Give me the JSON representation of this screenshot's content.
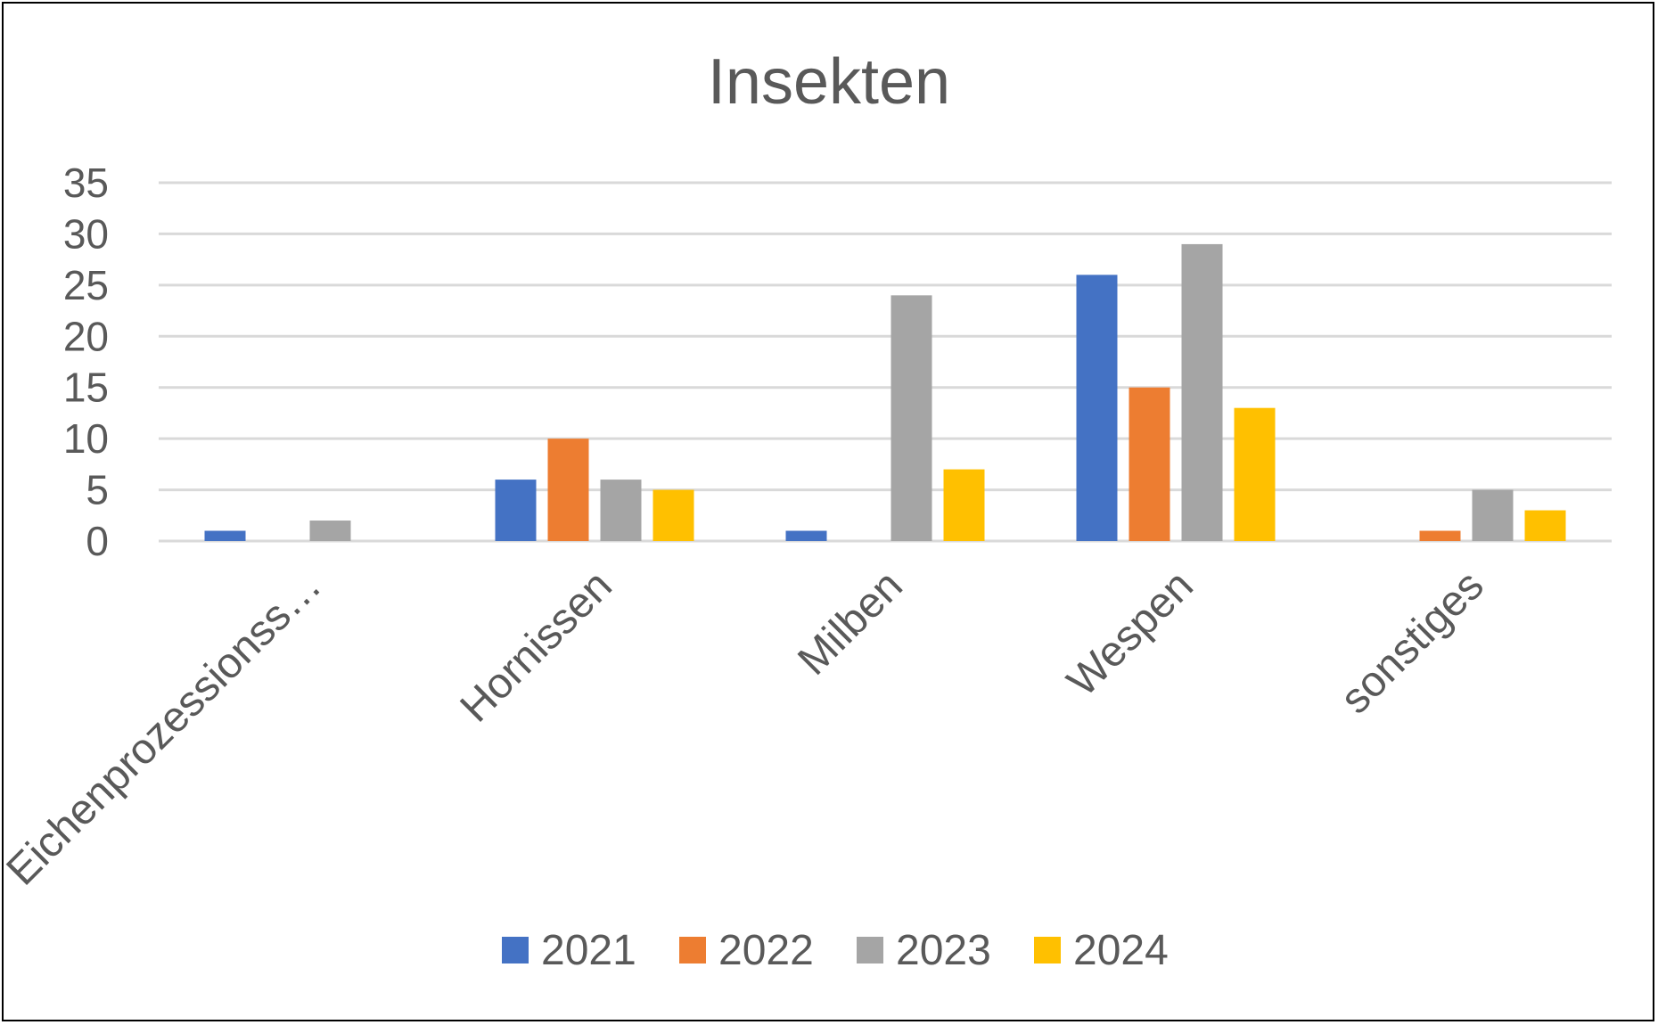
{
  "chart_data": {
    "type": "bar",
    "title": "Insekten",
    "xlabel": "",
    "ylabel": "",
    "ylim": [
      0,
      35
    ],
    "yticks": [
      0,
      5,
      10,
      15,
      20,
      25,
      30,
      35
    ],
    "grid": true,
    "legend_position": "bottom",
    "categories": [
      "Eichenprozessionss…",
      "Hornissen",
      "Milben",
      "Wespen",
      "sonstiges"
    ],
    "series": [
      {
        "name": "2021",
        "color": "#4472C4",
        "values": [
          1,
          6,
          1,
          26,
          0
        ]
      },
      {
        "name": "2022",
        "color": "#ED7D31",
        "values": [
          0,
          10,
          0,
          15,
          1
        ]
      },
      {
        "name": "2023",
        "color": "#A5A5A5",
        "values": [
          2,
          6,
          24,
          29,
          5
        ]
      },
      {
        "name": "2024",
        "color": "#FFC000",
        "values": [
          0,
          5,
          7,
          13,
          3
        ]
      }
    ]
  }
}
